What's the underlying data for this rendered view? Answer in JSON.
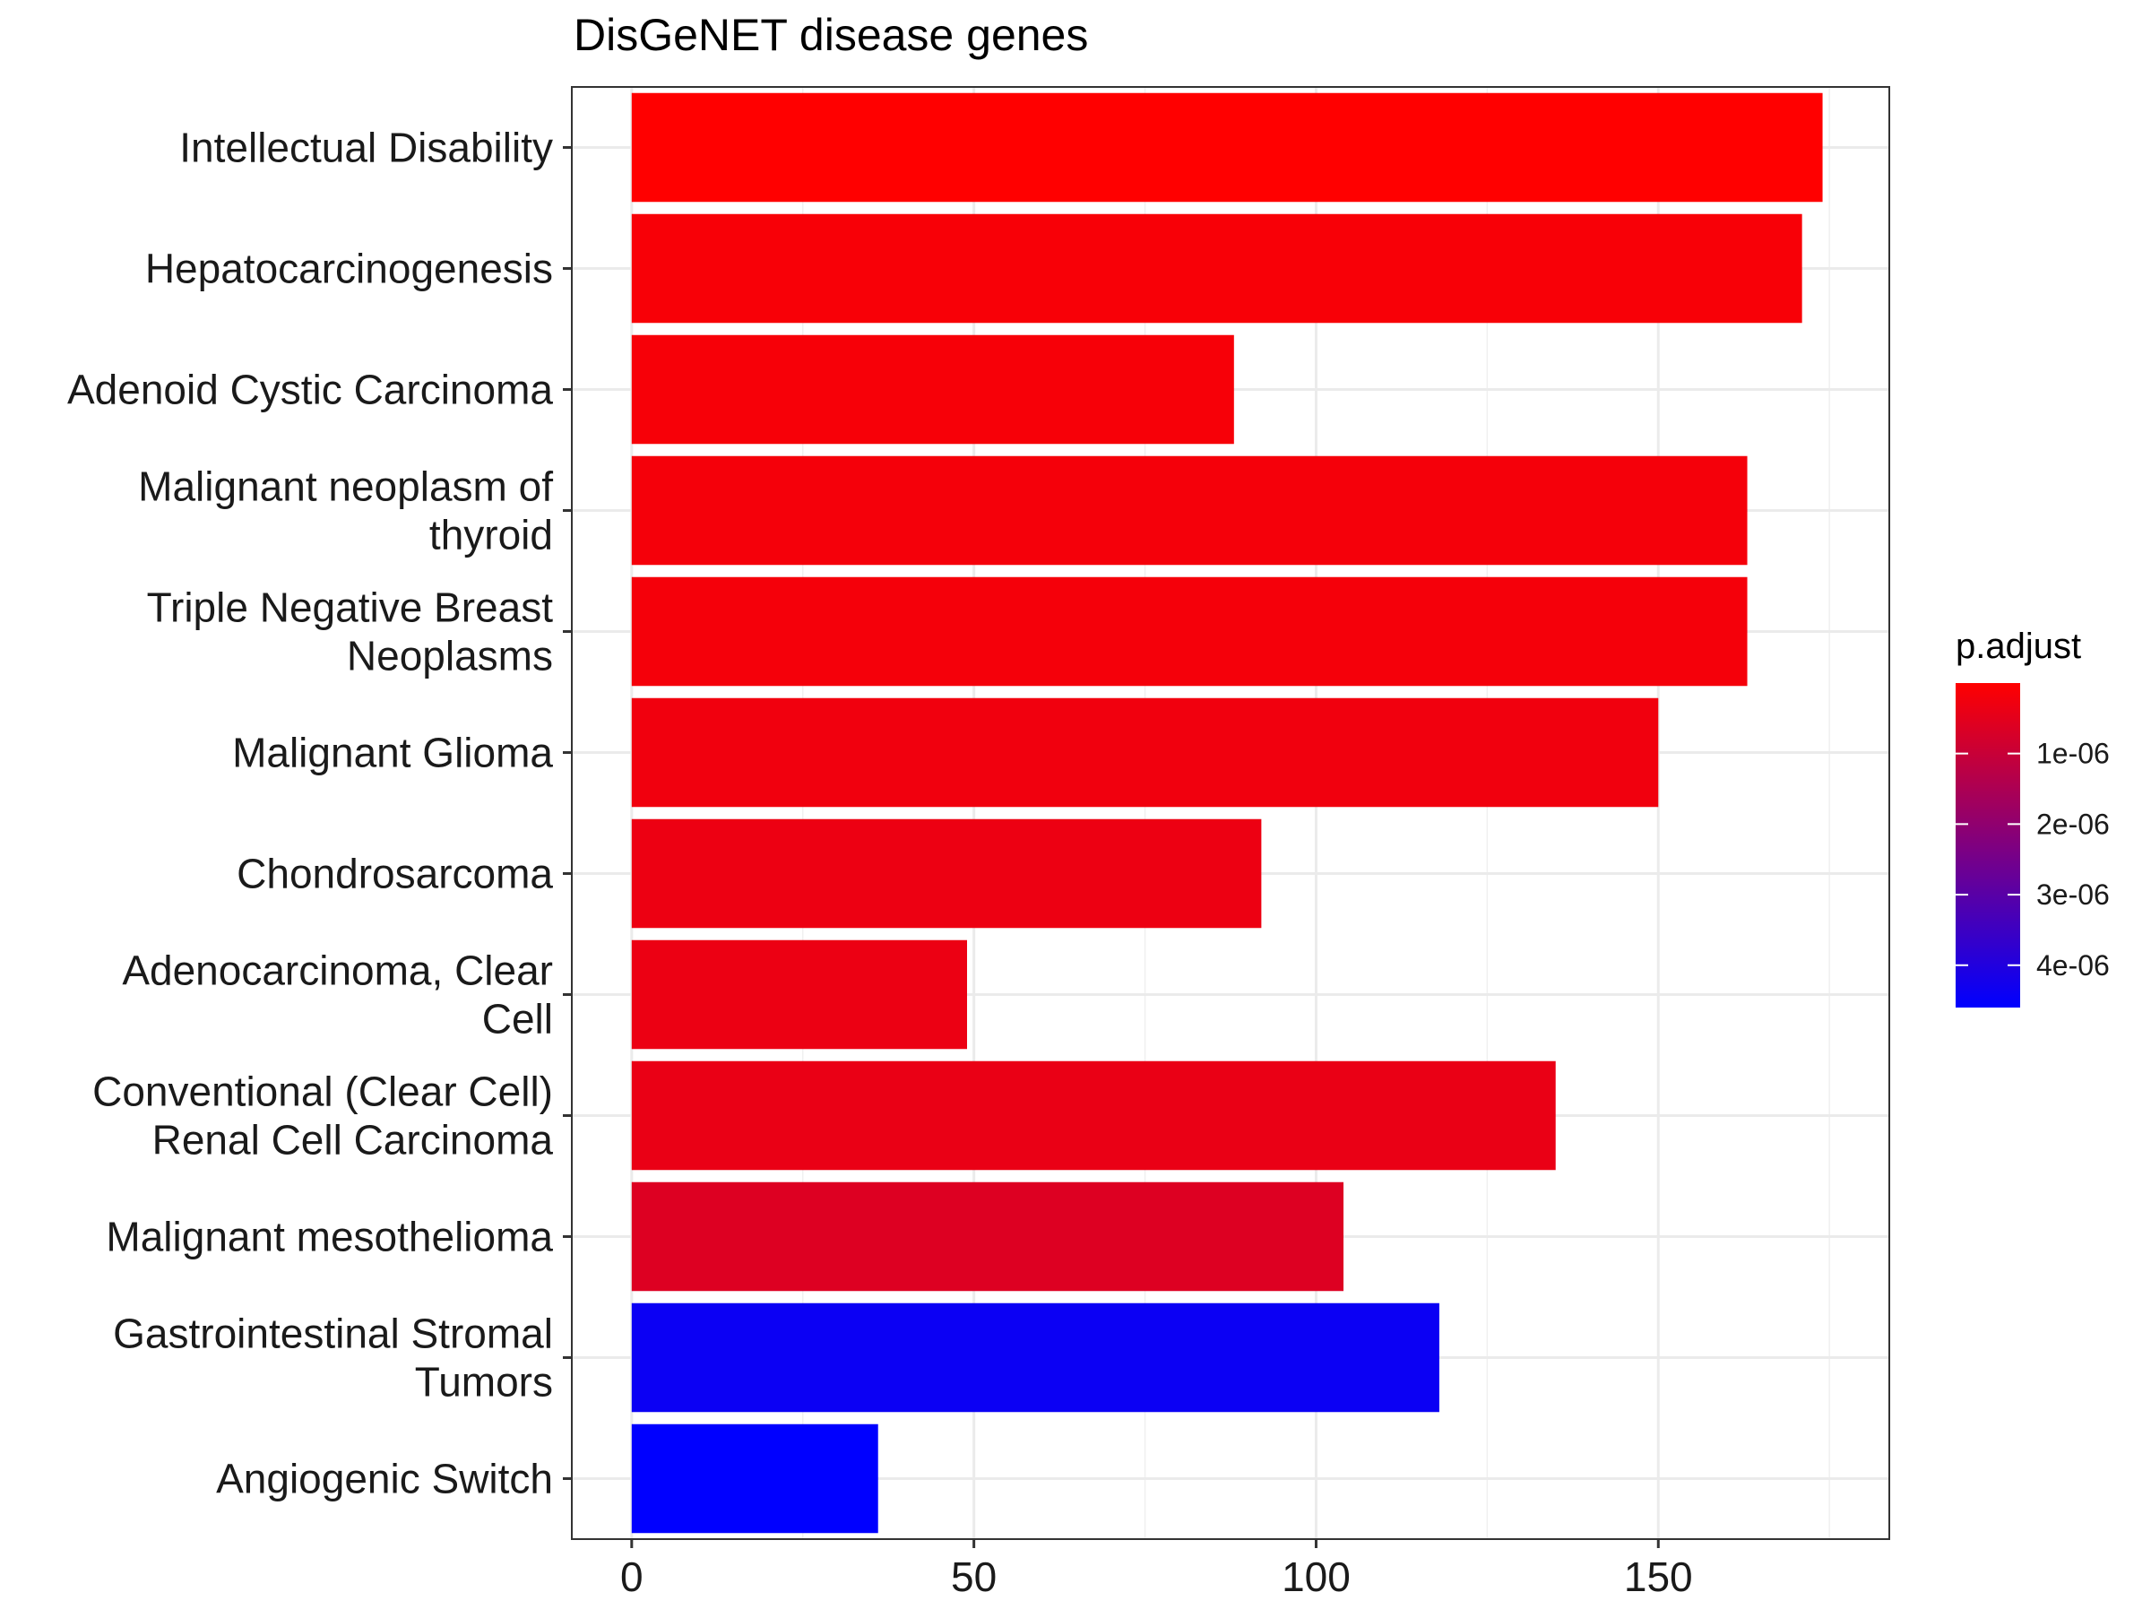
{
  "chart_data": {
    "type": "bar",
    "orientation": "horizontal",
    "title": "DisGeNET disease genes",
    "xlabel": "",
    "ylabel": "",
    "xlim": [
      -8.75,
      183.75
    ],
    "x_ticks": [
      0,
      50,
      100,
      150
    ],
    "x_tick_labels": [
      "0",
      "50",
      "100",
      "150"
    ],
    "grid": true,
    "categories": [
      [
        "Intellectual Disability"
      ],
      [
        "Hepatocarcinogenesis"
      ],
      [
        "Adenoid Cystic Carcinoma"
      ],
      [
        "Malignant neoplasm of",
        "thyroid"
      ],
      [
        "Triple Negative Breast",
        "Neoplasms"
      ],
      [
        "Malignant Glioma"
      ],
      [
        "Chondrosarcoma"
      ],
      [
        "Adenocarcinoma, Clear",
        "Cell"
      ],
      [
        "Conventional (Clear Cell)",
        "Renal Cell Carcinoma"
      ],
      [
        "Malignant mesothelioma"
      ],
      [
        "Gastrointestinal Stromal",
        "Tumors"
      ],
      [
        "Angiogenic Switch"
      ]
    ],
    "values": [
      174,
      171,
      88,
      163,
      163,
      150,
      92,
      49,
      135,
      104,
      118,
      36
    ],
    "p_adjust": [
      1e-09,
      1.2e-07,
      1.4e-07,
      1.8e-07,
      1.9e-07,
      2.5e-07,
      3.2e-07,
      3.4e-07,
      3.8e-07,
      6.2e-07,
      4.4e-06,
      4.6e-06
    ],
    "legend": {
      "title": "p.adjust",
      "placement": "right",
      "scale_min": 1e-09,
      "scale_max": 4.6e-06,
      "low_color": "#ff0000",
      "high_color": "#0000ff",
      "breaks": [
        1e-06,
        2e-06,
        3e-06,
        4e-06
      ],
      "break_labels": [
        "1e-06",
        "2e-06",
        "3e-06",
        "4e-06"
      ]
    }
  }
}
